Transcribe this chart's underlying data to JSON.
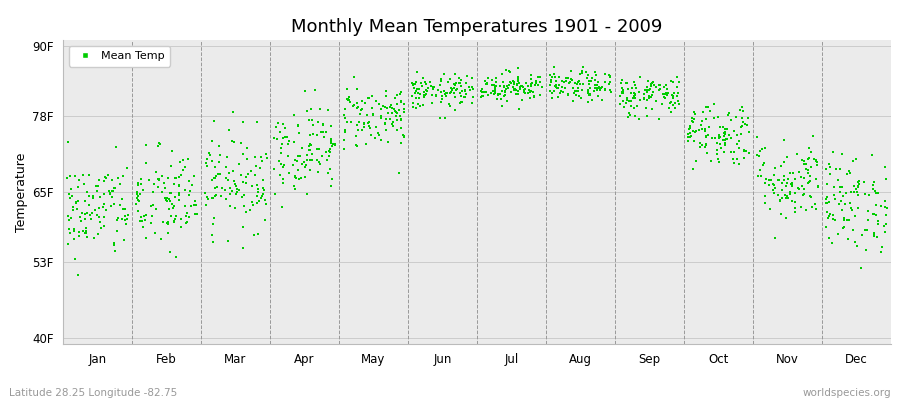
{
  "title": "Monthly Mean Temperatures 1901 - 2009",
  "ylabel": "Temperature",
  "yticks": [
    40,
    53,
    65,
    78,
    90
  ],
  "ytick_labels": [
    "40F",
    "53F",
    "65F",
    "78F",
    "90F"
  ],
  "ylim": [
    39,
    91
  ],
  "months": [
    "Jan",
    "Feb",
    "Mar",
    "Apr",
    "May",
    "Jun",
    "Jul",
    "Aug",
    "Sep",
    "Oct",
    "Nov",
    "Dec"
  ],
  "dot_color": "#00cc00",
  "dot_size": 3,
  "outer_bg": "#ffffff",
  "plot_bg_color": "#ebebeb",
  "title_fontsize": 13,
  "axis_label_fontsize": 9,
  "tick_fontsize": 8.5,
  "legend_label": "Mean Temp",
  "subtitle_left": "Latitude 28.25 Longitude -82.75",
  "subtitle_right": "worldspecies.org",
  "subtitle_fontsize": 7.5,
  "n_years": 109,
  "monthly_means": [
    62.0,
    63.5,
    67.0,
    72.5,
    78.0,
    82.0,
    83.0,
    83.0,
    81.5,
    75.0,
    67.0,
    63.0
  ],
  "monthly_stds": [
    4.2,
    4.5,
    4.2,
    3.8,
    2.8,
    1.5,
    1.3,
    1.3,
    1.8,
    2.8,
    3.5,
    4.2
  ]
}
